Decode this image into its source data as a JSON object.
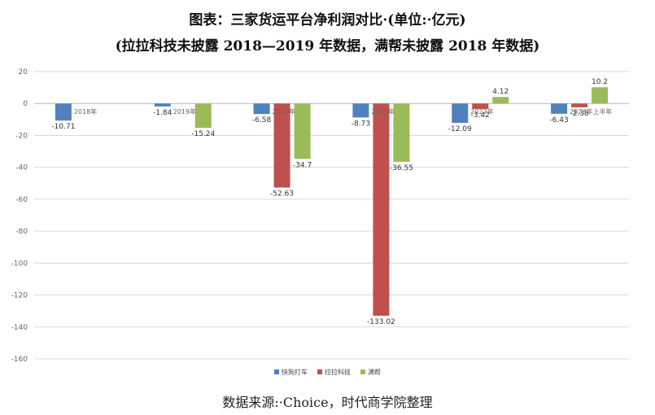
{
  "title_line1": "图表：三家货运平台净利润对比·(单位:·亿元)",
  "title_line2": "(拉拉科技未披露 2018—2019 年数据，满帮未披露 2018 年数据)",
  "source": "数据来源:·Choice，时代商学院整理",
  "chart_data": {
    "type": "bar",
    "categories": [
      "2018年",
      "2019年",
      "2020年",
      "2021年",
      "2022年",
      "2023年上半年"
    ],
    "series": [
      {
        "name": "快狗打车",
        "color": "#4f81bd",
        "values": [
          -10.71,
          -1.84,
          -6.58,
          -8.73,
          -12.09,
          -6.43
        ]
      },
      {
        "name": "拉拉科技",
        "color": "#c0504d",
        "values": [
          null,
          null,
          -52.63,
          -133.02,
          -3.42,
          -2.38
        ]
      },
      {
        "name": "满帮",
        "color": "#9bbb59",
        "values": [
          null,
          -15.24,
          -34.7,
          -36.55,
          4.12,
          10.2
        ]
      }
    ],
    "ylim": [
      -160,
      20
    ],
    "yticks": [
      20,
      0,
      -20,
      -40,
      -60,
      -80,
      -100,
      -120,
      -140,
      -160
    ],
    "grid": true,
    "legend": "bottom"
  }
}
